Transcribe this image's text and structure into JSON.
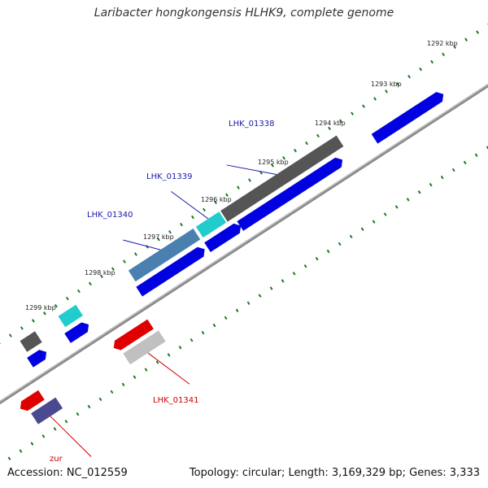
{
  "title": "Laribacter hongkongensis HLHK9, complete genome",
  "footer": {
    "accession": "Accession: NC_012559",
    "stats": "Topology: circular; Length: 3,169,329 bp; Genes: 3,333"
  },
  "colors": {
    "background": "#ffffff",
    "backbone": "#8a8a8a",
    "tick": "#1e7a1e",
    "forward_label": "#1a1aaa",
    "reverse_label": "#cc0000",
    "cds_blue": "#0000e0",
    "dark_gray_gene": "#555555",
    "cyan_gene": "#22cccc",
    "steel_gene": "#4a80b0",
    "red_gene": "#e00000",
    "light_gray_gene": "#c0c0c0",
    "slate_gene": "#4a4a90"
  },
  "tick_labels": [
    "1292 kbp",
    "1293 kbp",
    "1294 kbp",
    "1295 kbp",
    "1296 kbp",
    "1297 kbp",
    "1298 kbp",
    "1299 kbp"
  ],
  "gene_labels": [
    {
      "text": "LHK_01338",
      "strand": "forward"
    },
    {
      "text": "LHK_01339",
      "strand": "forward"
    },
    {
      "text": "LHK_01340",
      "strand": "forward"
    },
    {
      "text": "LHK_01341",
      "strand": "reverse"
    },
    {
      "text": "zur",
      "strand": "reverse"
    }
  ]
}
